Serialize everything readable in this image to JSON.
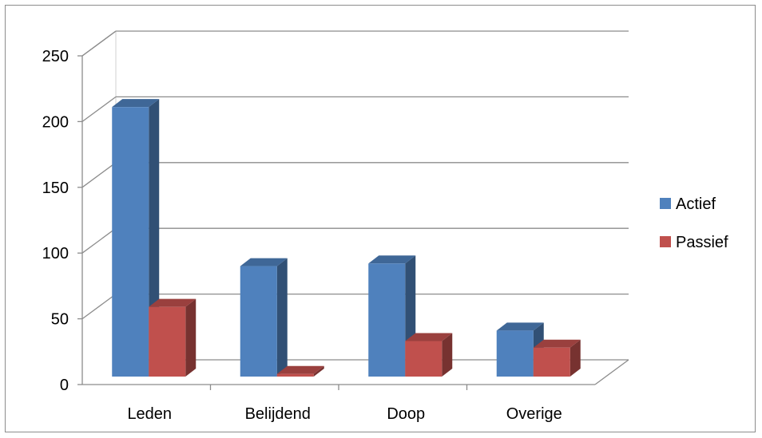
{
  "chart_data": {
    "type": "bar",
    "style": "3d-clustered-column",
    "categories": [
      "Leden",
      "Belijdend",
      "Doop",
      "Overige"
    ],
    "series": [
      {
        "name": "Actief",
        "color": "#4f81bd",
        "values": [
          205,
          84,
          86,
          35
        ]
      },
      {
        "name": "Passief",
        "color": "#c0504d",
        "values": [
          53,
          2,
          27,
          22
        ]
      }
    ],
    "ylim": [
      0,
      250
    ],
    "y_ticks": [
      "0",
      "50",
      "100",
      "150",
      "200",
      "250"
    ],
    "grid": true,
    "legend": "right",
    "title": "",
    "xlabel": "",
    "ylabel": ""
  }
}
